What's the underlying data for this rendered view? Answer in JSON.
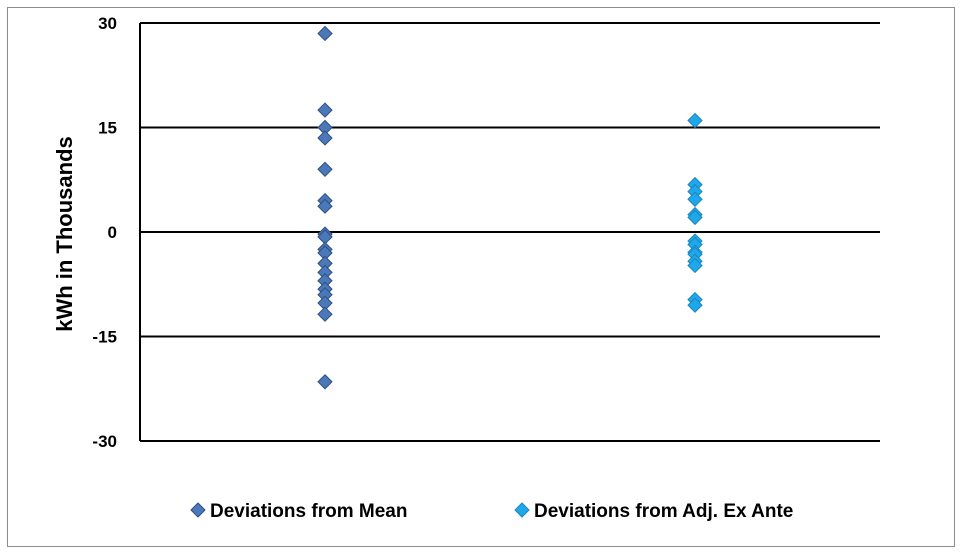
{
  "chart_data": {
    "type": "scatter",
    "title": "",
    "xlabel": "",
    "ylabel": "kWh in Thousands",
    "ylim": [
      -30,
      30
    ],
    "yticks": [
      "30",
      "15",
      "0",
      "-15",
      "-30"
    ],
    "grid": true,
    "legend_position": "bottom",
    "series": [
      {
        "name": "Deviations from Mean",
        "color": "#4a78b8",
        "x": 1,
        "values": [
          28.5,
          17.5,
          15,
          13.5,
          9,
          4.5,
          3.7,
          -0.3,
          -0.7,
          -2.5,
          -3,
          -4.5,
          -5.8,
          -7,
          -8.2,
          -9,
          -10.2,
          -11.8,
          -21.5
        ]
      },
      {
        "name": "Deviations from Adj. Ex Ante",
        "color": "#1ea8ea",
        "x": 2,
        "values": [
          16,
          6.8,
          5.8,
          4.7,
          2.5,
          2.1,
          -1.3,
          -1.8,
          -2.9,
          -3.2,
          -4.2,
          -4.8,
          -9.7,
          -10.5
        ]
      }
    ]
  }
}
